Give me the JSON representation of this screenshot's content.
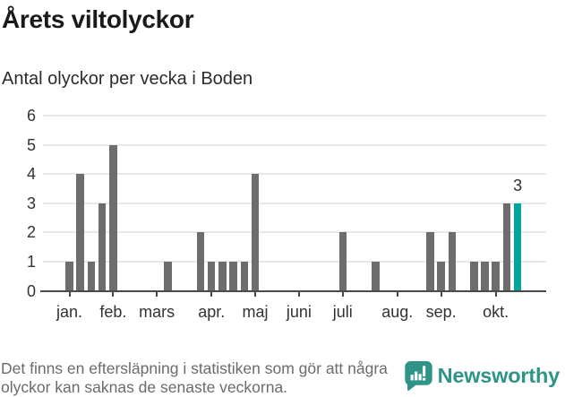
{
  "chart_data": {
    "type": "bar",
    "title": "Årets viltolyckor",
    "subtitle": "Antal olyckor per vecka i Boden",
    "x_unit": "vecka",
    "weeks": [
      1,
      4,
      1,
      3,
      5,
      0,
      0,
      0,
      0,
      1,
      0,
      0,
      2,
      1,
      1,
      1,
      1,
      4,
      0,
      0,
      0,
      0,
      0,
      0,
      0,
      2,
      0,
      0,
      1,
      0,
      0,
      0,
      0,
      2,
      1,
      2,
      0,
      1,
      1,
      1,
      3,
      3
    ],
    "highlight_last_index": 41,
    "annotation": {
      "text": "3",
      "week_index": 41,
      "value": 3
    },
    "y_ticks": [
      "0",
      "1",
      "2",
      "3",
      "4",
      "5",
      "6"
    ],
    "ylim": [
      0,
      6
    ],
    "x_ticks": [
      {
        "label": "jan.",
        "week_index": 0
      },
      {
        "label": "feb.",
        "week_index": 4
      },
      {
        "label": "mars",
        "week_index": 8
      },
      {
        "label": "apr.",
        "week_index": 13
      },
      {
        "label": "maj",
        "week_index": 17
      },
      {
        "label": "juni",
        "week_index": 21
      },
      {
        "label": "juli",
        "week_index": 25
      },
      {
        "label": "aug.",
        "week_index": 30
      },
      {
        "label": "sep.",
        "week_index": 34
      },
      {
        "label": "okt.",
        "week_index": 39
      }
    ],
    "grid": true,
    "legend": false,
    "colors": {
      "bar": "#6d6d6d",
      "highlight": "#00a59c",
      "grid": "#e8e8e8",
      "axis": "#4a4a4a",
      "tick_text": "#333333"
    }
  },
  "footer": {
    "note_lines": [
      "Det finns en eftersläpning i statistiken som gör att några",
      "olyckor kan saknas de senaste veckorna."
    ],
    "brand": "Newsworthy",
    "brand_color": "#2e9488"
  }
}
